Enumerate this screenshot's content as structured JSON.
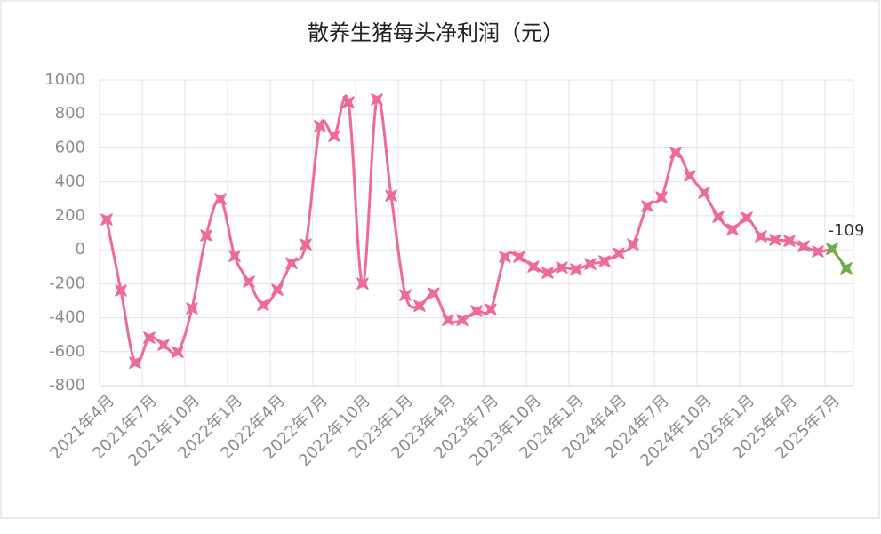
{
  "chart_data": {
    "type": "line",
    "title": "散养生猪每头净利润（元）",
    "categories": [
      "2021年4月",
      null,
      null,
      "2021年7月",
      null,
      null,
      "2021年10月",
      null,
      null,
      "2022年1月",
      null,
      null,
      "2022年4月",
      null,
      null,
      "2022年7月",
      null,
      null,
      "2022年10月",
      null,
      null,
      "2023年1月",
      null,
      null,
      "2023年4月",
      null,
      null,
      "2023年7月",
      null,
      null,
      "2023年10月",
      null,
      null,
      "2024年1月",
      null,
      null,
      "2024年4月",
      null,
      null,
      "2024年7月",
      null,
      null,
      "2024年10月",
      null,
      null,
      "2025年1月",
      null,
      null,
      "2025年4月",
      null,
      null,
      "2025年7月",
      null
    ],
    "series": [
      {
        "color": "#ee6a9b",
        "values": [
          178,
          -240,
          -665,
          -518,
          -560,
          -602,
          -345,
          84,
          298,
          -37,
          -188,
          -325,
          -236,
          -79,
          31,
          728,
          670,
          869,
          -199,
          885,
          319,
          -267,
          -330,
          -257,
          -414,
          -414,
          -361,
          -351,
          -42,
          -42,
          -99,
          -136,
          -105,
          -115,
          -84,
          -68,
          -21,
          31,
          257,
          309,
          571,
          435,
          335,
          194,
          120,
          188,
          79,
          58,
          52,
          21,
          -10,
          5,
          null
        ]
      },
      {
        "color": "#70ad47",
        "values": [
          null,
          null,
          null,
          null,
          null,
          null,
          null,
          null,
          null,
          null,
          null,
          null,
          null,
          null,
          null,
          null,
          null,
          null,
          null,
          null,
          null,
          null,
          null,
          null,
          null,
          null,
          null,
          null,
          null,
          null,
          null,
          null,
          null,
          null,
          null,
          null,
          null,
          null,
          null,
          null,
          null,
          null,
          null,
          null,
          null,
          null,
          null,
          null,
          null,
          null,
          null,
          5,
          -109
        ],
        "data_label_index": 52
      }
    ],
    "ylim": [
      -800,
      1000
    ],
    "yticks": [
      -800,
      -600,
      -400,
      -200,
      0,
      200,
      400,
      600,
      800,
      1000
    ],
    "grid": true
  }
}
